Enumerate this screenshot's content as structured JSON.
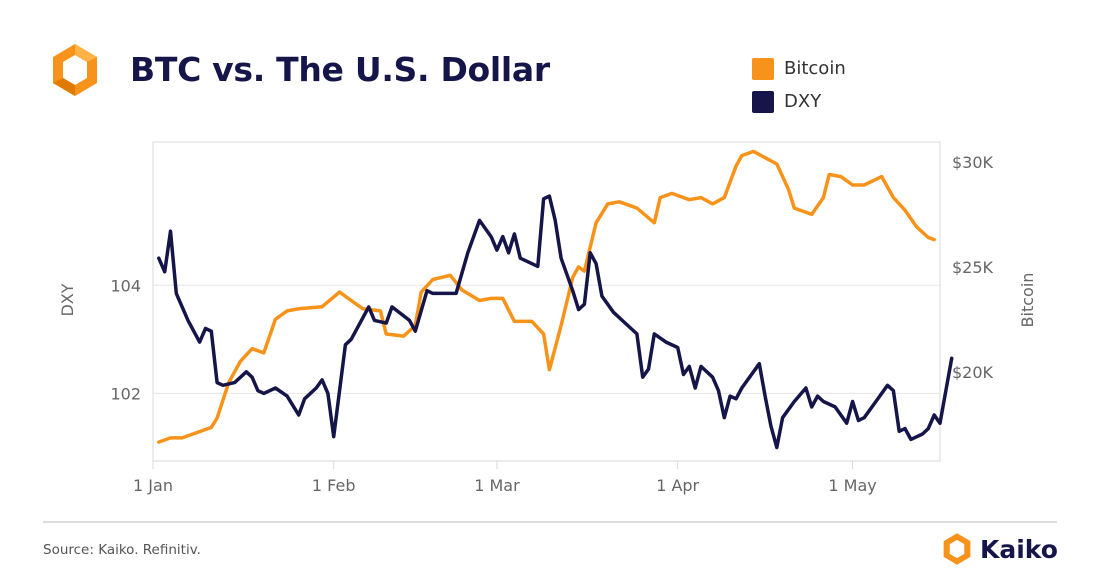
{
  "header": {
    "title": "BTC vs. The U.S. Dollar",
    "logo_icon": "kaiko-hexagon-icon"
  },
  "footer": {
    "source": "Source: Kaiko. Refinitiv.",
    "brand": "Kaiko",
    "brand_icon": "kaiko-hexagon-icon"
  },
  "colors": {
    "bitcoin": "#f7931a",
    "dxy": "#15154a",
    "grid": "#e6e6e6",
    "frame": "#d9d9d9",
    "text": "#666666"
  },
  "chart_data": {
    "type": "line",
    "legend_position": "top-right",
    "grid": true,
    "x_range": [
      "2023-01-01",
      "2023-05-16"
    ],
    "x_ticks": [
      "1 Jan",
      "1 Feb",
      "1 Mar",
      "1 Apr",
      "1 May"
    ],
    "y_left": {
      "label": "DXY",
      "range": [
        100.75,
        106.65
      ],
      "ticks": [
        102,
        104
      ],
      "tick_labels": [
        "102",
        "104"
      ]
    },
    "y_right": {
      "label": "Bitcoin",
      "range": [
        15750,
        30950
      ],
      "ticks": [
        20000,
        25000,
        30000
      ],
      "tick_labels": [
        "$20K",
        "$25K",
        "$30K"
      ]
    },
    "series": [
      {
        "name": "Bitcoin",
        "axis": "right",
        "points": [
          [
            "2023-01-02",
            16650
          ],
          [
            "2023-01-04",
            16850
          ],
          [
            "2023-01-06",
            16850
          ],
          [
            "2023-01-09",
            17150
          ],
          [
            "2023-01-11",
            17350
          ],
          [
            "2023-01-12",
            17800
          ],
          [
            "2023-01-14",
            19500
          ],
          [
            "2023-01-16",
            20500
          ],
          [
            "2023-01-18",
            21100
          ],
          [
            "2023-01-20",
            20900
          ],
          [
            "2023-01-22",
            22500
          ],
          [
            "2023-01-24",
            22900
          ],
          [
            "2023-01-26",
            23000
          ],
          [
            "2023-01-28",
            23050
          ],
          [
            "2023-01-30",
            23100
          ],
          [
            "2023-02-02",
            23800
          ],
          [
            "2023-02-04",
            23400
          ],
          [
            "2023-02-06",
            23000
          ],
          [
            "2023-02-09",
            22900
          ],
          [
            "2023-02-10",
            21800
          ],
          [
            "2023-02-13",
            21700
          ],
          [
            "2023-02-15",
            22200
          ],
          [
            "2023-02-16",
            23800
          ],
          [
            "2023-02-18",
            24400
          ],
          [
            "2023-02-21",
            24600
          ],
          [
            "2023-02-23",
            23900
          ],
          [
            "2023-02-26",
            23400
          ],
          [
            "2023-02-28",
            23500
          ],
          [
            "2023-03-02",
            23500
          ],
          [
            "2023-03-04",
            22400
          ],
          [
            "2023-03-07",
            22400
          ],
          [
            "2023-03-09",
            21800
          ],
          [
            "2023-03-10",
            20100
          ],
          [
            "2023-03-12",
            22200
          ],
          [
            "2023-03-14",
            24500
          ],
          [
            "2023-03-15",
            25000
          ],
          [
            "2023-03-16",
            24800
          ],
          [
            "2023-03-18",
            27100
          ],
          [
            "2023-03-20",
            28000
          ],
          [
            "2023-03-22",
            28100
          ],
          [
            "2023-03-25",
            27800
          ],
          [
            "2023-03-28",
            27100
          ],
          [
            "2023-03-29",
            28300
          ],
          [
            "2023-03-31",
            28500
          ],
          [
            "2023-04-03",
            28200
          ],
          [
            "2023-04-05",
            28300
          ],
          [
            "2023-04-07",
            28000
          ],
          [
            "2023-04-09",
            28300
          ],
          [
            "2023-04-11",
            29800
          ],
          [
            "2023-04-12",
            30300
          ],
          [
            "2023-04-14",
            30500
          ],
          [
            "2023-04-16",
            30200
          ],
          [
            "2023-04-18",
            29900
          ],
          [
            "2023-04-20",
            28700
          ],
          [
            "2023-04-21",
            27800
          ],
          [
            "2023-04-24",
            27500
          ],
          [
            "2023-04-26",
            28300
          ],
          [
            "2023-04-27",
            29400
          ],
          [
            "2023-04-29",
            29300
          ],
          [
            "2023-05-01",
            28900
          ],
          [
            "2023-05-03",
            28900
          ],
          [
            "2023-05-06",
            29300
          ],
          [
            "2023-05-08",
            28300
          ],
          [
            "2023-05-10",
            27700
          ],
          [
            "2023-05-12",
            26900
          ],
          [
            "2023-05-14",
            26400
          ],
          [
            "2023-05-15",
            26300
          ]
        ]
      },
      {
        "name": "DXY",
        "axis": "left",
        "points": [
          [
            "2023-01-02",
            104.5
          ],
          [
            "2023-01-03",
            104.25
          ],
          [
            "2023-01-04",
            105.0
          ],
          [
            "2023-01-05",
            103.85
          ],
          [
            "2023-01-07",
            103.35
          ],
          [
            "2023-01-09",
            102.95
          ],
          [
            "2023-01-10",
            103.2
          ],
          [
            "2023-01-11",
            103.15
          ],
          [
            "2023-01-12",
            102.2
          ],
          [
            "2023-01-13",
            102.15
          ],
          [
            "2023-01-15",
            102.2
          ],
          [
            "2023-01-17",
            102.4
          ],
          [
            "2023-01-18",
            102.3
          ],
          [
            "2023-01-19",
            102.05
          ],
          [
            "2023-01-20",
            102.0
          ],
          [
            "2023-01-22",
            102.1
          ],
          [
            "2023-01-24",
            101.95
          ],
          [
            "2023-01-26",
            101.6
          ],
          [
            "2023-01-27",
            101.9
          ],
          [
            "2023-01-29",
            102.1
          ],
          [
            "2023-01-30",
            102.25
          ],
          [
            "2023-01-31",
            102.0
          ],
          [
            "2023-02-01",
            101.2
          ],
          [
            "2023-02-03",
            102.9
          ],
          [
            "2023-02-04",
            103.0
          ],
          [
            "2023-02-07",
            103.6
          ],
          [
            "2023-02-08",
            103.35
          ],
          [
            "2023-02-10",
            103.3
          ],
          [
            "2023-02-11",
            103.6
          ],
          [
            "2023-02-14",
            103.35
          ],
          [
            "2023-02-15",
            103.15
          ],
          [
            "2023-02-17",
            103.9
          ],
          [
            "2023-02-18",
            103.85
          ],
          [
            "2023-02-20",
            103.85
          ],
          [
            "2023-02-22",
            103.85
          ],
          [
            "2023-02-24",
            104.6
          ],
          [
            "2023-02-26",
            105.2
          ],
          [
            "2023-02-28",
            104.9
          ],
          [
            "2023-03-01",
            104.65
          ],
          [
            "2023-03-02",
            104.9
          ],
          [
            "2023-03-03",
            104.6
          ],
          [
            "2023-03-04",
            104.95
          ],
          [
            "2023-03-05",
            104.5
          ],
          [
            "2023-03-08",
            104.35
          ],
          [
            "2023-03-09",
            105.6
          ],
          [
            "2023-03-10",
            105.65
          ],
          [
            "2023-03-11",
            105.2
          ],
          [
            "2023-03-12",
            104.5
          ],
          [
            "2023-03-14",
            103.9
          ],
          [
            "2023-03-15",
            103.55
          ],
          [
            "2023-03-16",
            103.65
          ],
          [
            "2023-03-17",
            104.6
          ],
          [
            "2023-03-18",
            104.4
          ],
          [
            "2023-03-19",
            103.8
          ],
          [
            "2023-03-21",
            103.5
          ],
          [
            "2023-03-23",
            103.3
          ],
          [
            "2023-03-25",
            103.1
          ],
          [
            "2023-03-26",
            102.3
          ],
          [
            "2023-03-27",
            102.45
          ],
          [
            "2023-03-28",
            103.1
          ],
          [
            "2023-03-30",
            102.95
          ],
          [
            "2023-04-01",
            102.85
          ],
          [
            "2023-04-02",
            102.35
          ],
          [
            "2023-04-03",
            102.5
          ],
          [
            "2023-04-04",
            102.1
          ],
          [
            "2023-04-05",
            102.5
          ],
          [
            "2023-04-07",
            102.3
          ],
          [
            "2023-04-08",
            102.05
          ],
          [
            "2023-04-09",
            101.55
          ],
          [
            "2023-04-10",
            101.95
          ],
          [
            "2023-04-11",
            101.9
          ],
          [
            "2023-04-12",
            102.1
          ],
          [
            "2023-04-15",
            102.55
          ],
          [
            "2023-04-16",
            101.95
          ],
          [
            "2023-04-17",
            101.4
          ],
          [
            "2023-04-18",
            101.0
          ],
          [
            "2023-04-19",
            101.55
          ],
          [
            "2023-04-21",
            101.85
          ],
          [
            "2023-04-23",
            102.1
          ],
          [
            "2023-04-24",
            101.75
          ],
          [
            "2023-04-25",
            101.95
          ],
          [
            "2023-04-26",
            101.85
          ],
          [
            "2023-04-28",
            101.75
          ],
          [
            "2023-04-30",
            101.45
          ],
          [
            "2023-05-01",
            101.85
          ],
          [
            "2023-05-02",
            101.5
          ],
          [
            "2023-05-03",
            101.55
          ],
          [
            "2023-05-05",
            101.85
          ],
          [
            "2023-05-07",
            102.15
          ],
          [
            "2023-05-08",
            102.05
          ],
          [
            "2023-05-09",
            101.3
          ],
          [
            "2023-05-10",
            101.35
          ],
          [
            "2023-05-11",
            101.15
          ],
          [
            "2023-05-13",
            101.25
          ],
          [
            "2023-05-14",
            101.35
          ],
          [
            "2023-05-15",
            101.6
          ],
          [
            "2023-05-16",
            101.45
          ],
          [
            "2023-05-18",
            102.65
          ]
        ]
      }
    ]
  }
}
